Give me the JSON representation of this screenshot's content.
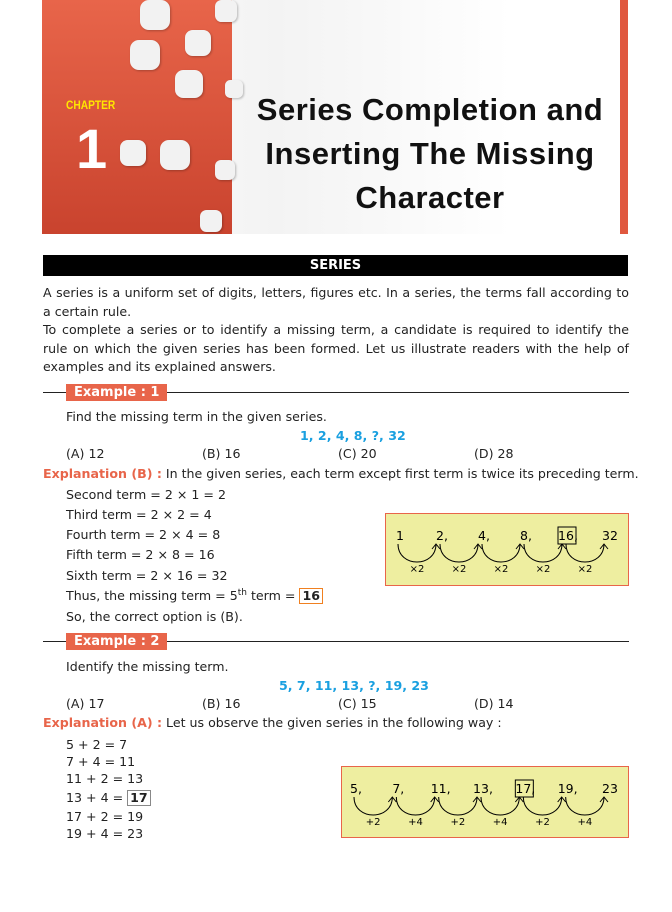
{
  "header": {
    "chapter_label": "CHAPTER",
    "chapter_number": "1",
    "title_lines": [
      "Series Completion and",
      "Inserting The Missing",
      "Character"
    ],
    "accent": "#e8654a"
  },
  "section": {
    "title": "SERIES",
    "paragraphs": [
      "A series is a uniform set of digits, letters, figures etc. In a series, the terms fall according to a certain rule.",
      "To complete a series or to identify a missing term, a candidate is required to identify the rule on which the given series has been formed. Let us illustrate readers with the help of examples and its explained answers."
    ]
  },
  "example1": {
    "label": "Example : 1",
    "question": "Find the missing term in the given series.",
    "series": "1, 2, 4, 8, ?, 32",
    "options": [
      "(A)  12",
      "(B)  16",
      "(C)  20",
      "(D)  28"
    ],
    "explanation_label": "Explanation (B) :",
    "explanation_text": " In the given series, each term except first term is twice its preceding term.",
    "steps": [
      "Second term = 2 × 1 = 2",
      "Third term = 2 × 2 = 4",
      "Fourth term = 2 × 4 = 8",
      "Fifth term = 2 × 8 = 16",
      "Sixth term = 2 × 16 = 32"
    ],
    "thus_prefix": "Thus, the missing term = 5",
    "thus_sup": "th",
    "thus_suffix": " term = ",
    "answer": "16",
    "conclusion": "So, the correct option is (B).",
    "diagram": {
      "terms": [
        "1",
        "2,",
        "4,",
        "8,",
        "16",
        ",",
        "32"
      ],
      "term_values": [
        "1",
        "2",
        "4",
        "8",
        "16",
        "32"
      ],
      "boxed_index": 4,
      "ops": [
        "×2",
        "×2",
        "×2",
        "×2",
        "×2"
      ]
    }
  },
  "example2": {
    "label": "Example : 2",
    "question": "Identify the missing term.",
    "series": "5, 7, 11, 13, ?, 19, 23",
    "options": [
      "(A)  17",
      "(B)  16",
      "(C)  15",
      "(D)  14"
    ],
    "explanation_label": "Explanation (A) :",
    "explanation_text": " Let us observe the given series in the following way :",
    "steps": [
      "5 + 2 = 7",
      "7 + 4 = 11",
      "11 + 2 = 13",
      "13 + 4 = ",
      "17 + 2 = 19",
      "19 + 4 = 23"
    ],
    "answer": "17",
    "diagram": {
      "term_values": [
        "5",
        "7",
        "11",
        "13",
        "17",
        "19",
        "23"
      ],
      "boxed_index": 4,
      "ops": [
        "+2",
        "+4",
        "+2",
        "+4",
        "+2",
        "+4"
      ]
    }
  }
}
